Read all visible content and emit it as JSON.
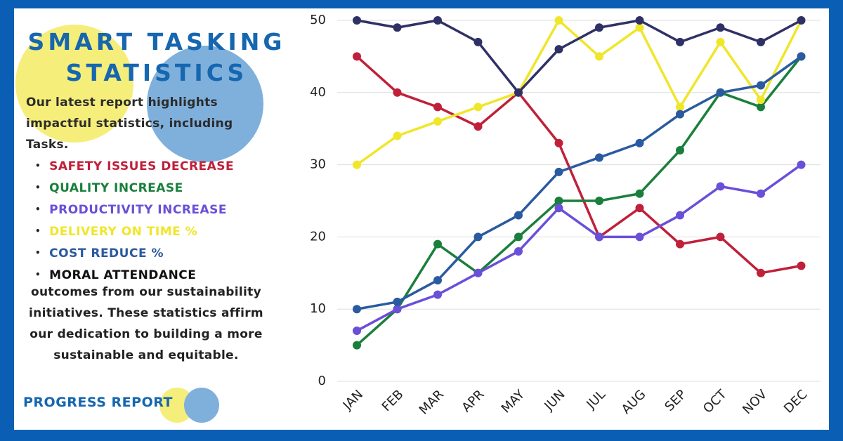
{
  "chart_data": {
    "type": "line",
    "title": "SMART TASKING STATISTICS",
    "intro": "Our latest report highlights impactful statistics, including Tasks.",
    "outro": "outcomes from our sustainability initiatives. These statistics affirm our dedication to building a more sustainable and equitable.",
    "footer": "PROGRESS REPORT",
    "categories": [
      "JAN",
      "FEB",
      "MAR",
      "APR",
      "MAY",
      "JUN",
      "JUL",
      "AUG",
      "SEP",
      "OCT",
      "NOV",
      "DEC"
    ],
    "series": [
      {
        "name": "SAFETY ISSUES DECREASE",
        "color": "#c0203a",
        "values": [
          45,
          40,
          38,
          35.3,
          40,
          33,
          20,
          24,
          19,
          20,
          15,
          16
        ]
      },
      {
        "name": "QUALITY INCREASE",
        "color": "#1a7f3c",
        "values": [
          5,
          10,
          19,
          15,
          20,
          25,
          25,
          26,
          32,
          40,
          38,
          45
        ]
      },
      {
        "name": "PRODUCTIVITY INCREASE",
        "color": "#6a4fd8",
        "values": [
          7,
          10,
          12,
          15,
          18,
          24,
          20,
          20,
          23,
          27,
          26,
          30
        ]
      },
      {
        "name": "DELIVERY ON TIME %",
        "color": "#f0e62a",
        "values": [
          30,
          34,
          36,
          38,
          40,
          50,
          45,
          49,
          38,
          47,
          39,
          50
        ]
      },
      {
        "name": "COST REDUCE %",
        "color": "#2a5aa0",
        "values": [
          10,
          11,
          14,
          20,
          23,
          29,
          31,
          33,
          37,
          40,
          41,
          45
        ]
      },
      {
        "name": "MORAL ATTENDANCE",
        "color": "#2f3166",
        "values": [
          50,
          49,
          50,
          47,
          40,
          46,
          49,
          50,
          47,
          49,
          47,
          50
        ]
      }
    ],
    "ylim": [
      0,
      50
    ],
    "yticks": [
      0,
      10,
      20,
      30,
      40,
      50
    ],
    "grid": true
  }
}
